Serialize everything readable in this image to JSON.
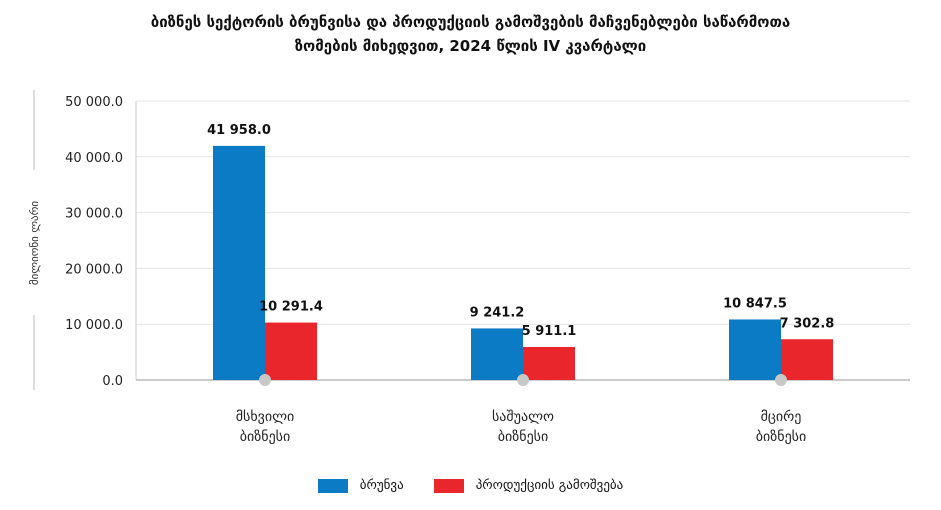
{
  "chart_data": {
    "type": "bar",
    "title_line1": "ბიზნეს სექტორის ბრუნვისა და პროდუქციის  გამოშვების მაჩვენებლები საწარმოთა",
    "title_line2": "ზომების მიხედვით, 2024 წლის IV კვარტალი",
    "ylabel": "მილიონი ლარი",
    "ylim": [
      0,
      50000
    ],
    "yticks": [
      "0.0",
      "10 000.0",
      "20 000.0",
      "30 000.0",
      "40 000.0",
      "50 000.0"
    ],
    "ytick_values": [
      0,
      10000,
      20000,
      30000,
      40000,
      50000
    ],
    "categories": [
      [
        "მსხვილი",
        "ბიზნესი"
      ],
      [
        "საშუალო",
        "ბიზნესი"
      ],
      [
        "მცირე",
        "ბიზნესი"
      ]
    ],
    "series": [
      {
        "name": "ბრუნვა",
        "color": "#0a7bc4",
        "values": [
          41958.0,
          9241.2,
          10847.5
        ],
        "labels": [
          "41 958.0",
          "9 241.2",
          "10 847.5"
        ]
      },
      {
        "name": "პროდუქციის გამოშვება",
        "color": "#e8262b",
        "values": [
          10291.4,
          5911.1,
          7302.8
        ],
        "labels": [
          "10 291.4",
          "5 911.1",
          "7 302.8"
        ]
      }
    ],
    "grid": true,
    "legend_position": "bottom-center"
  }
}
